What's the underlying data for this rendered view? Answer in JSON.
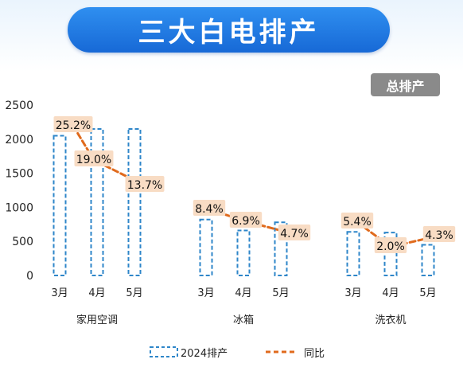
{
  "header": {
    "title": "三大白电排产",
    "tag": "总排产"
  },
  "legend": {
    "bars": "2024排产",
    "line": "同比"
  },
  "colors": {
    "bar": "#2e86c9",
    "line": "#e06a1c",
    "label_bg": "#f8dcc4"
  },
  "chart_data": {
    "type": "bar",
    "ylim": [
      0,
      2500
    ],
    "yticks": [
      0,
      500,
      1000,
      1500,
      2000,
      2500
    ],
    "groups": [
      {
        "name": "家用空调",
        "categories": [
          "3月",
          "4月",
          "5月"
        ],
        "values": [
          2050,
          2150,
          2150
        ],
        "yoy": [
          "25.2%",
          "19.0%",
          "13.7%"
        ]
      },
      {
        "name": "冰箱",
        "categories": [
          "3月",
          "4月",
          "5月"
        ],
        "values": [
          820,
          660,
          780
        ],
        "yoy": [
          "8.4%",
          "6.9%",
          "4.7%"
        ]
      },
      {
        "name": "洗衣机",
        "categories": [
          "3月",
          "4月",
          "5月"
        ],
        "values": [
          640,
          630,
          450
        ],
        "yoy": [
          "5.4%",
          "2.0%",
          "4.3%"
        ]
      }
    ],
    "series": [
      {
        "name": "2024排产",
        "type": "bar"
      },
      {
        "name": "同比",
        "type": "line"
      }
    ]
  }
}
